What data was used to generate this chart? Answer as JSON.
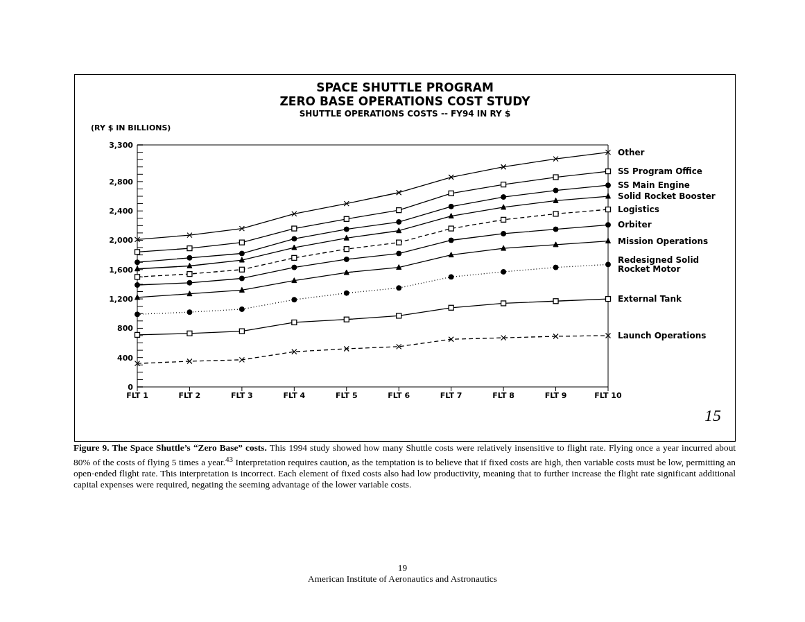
{
  "chart_data": {
    "type": "line",
    "title": "SPACE SHUTTLE PROGRAM\nZERO BASE OPERATIONS COST STUDY",
    "subtitle": "SHUTTLE OPERATIONS COSTS -- FY94 IN RY $",
    "ylabel": "(RY $ IN BILLIONS)",
    "categories": [
      "FLT 1",
      "FLT 2",
      "FLT 3",
      "FLT 4",
      "FLT 5",
      "FLT 6",
      "FLT 7",
      "FLT 8",
      "FLT 9",
      "FLT 10"
    ],
    "series": [
      {
        "name": "Other",
        "color": "#000000",
        "marker": "cross",
        "line_style": "solid",
        "values": [
          2010,
          2070,
          2160,
          2360,
          2500,
          2650,
          2860,
          3000,
          3110,
          3200
        ]
      },
      {
        "name": "SS Program Office",
        "color": "#000000",
        "marker": "square",
        "line_style": "solid",
        "values": [
          1840,
          1890,
          1970,
          2160,
          2290,
          2410,
          2640,
          2760,
          2860,
          2940
        ]
      },
      {
        "name": "SS Main Engine",
        "color": "#000000",
        "marker": "circle",
        "line_style": "solid",
        "values": [
          1700,
          1760,
          1820,
          2020,
          2150,
          2250,
          2460,
          2590,
          2680,
          2750
        ]
      },
      {
        "name": "Solid Rocket Booster",
        "color": "#000000",
        "marker": "triangle",
        "line_style": "solid",
        "values": [
          1610,
          1650,
          1730,
          1900,
          2030,
          2130,
          2330,
          2450,
          2540,
          2600
        ]
      },
      {
        "name": "Logistics",
        "color": "#000000",
        "marker": "square",
        "line_style": "dashed",
        "values": [
          1500,
          1540,
          1600,
          1760,
          1880,
          1970,
          2160,
          2280,
          2360,
          2420
        ]
      },
      {
        "name": "Orbiter",
        "color": "#000000",
        "marker": "circle",
        "line_style": "solid",
        "values": [
          1390,
          1420,
          1480,
          1630,
          1740,
          1820,
          2000,
          2090,
          2150,
          2210
        ]
      },
      {
        "name": "Mission Operations",
        "color": "#000000",
        "marker": "triangle",
        "line_style": "solid",
        "values": [
          1220,
          1270,
          1320,
          1450,
          1560,
          1630,
          1800,
          1890,
          1940,
          1990
        ]
      },
      {
        "name": "Redesigned Solid\nRocket Motor",
        "color": "#000000",
        "marker": "circle",
        "line_style": "dotted",
        "values": [
          990,
          1020,
          1060,
          1190,
          1280,
          1350,
          1500,
          1570,
          1630,
          1670
        ]
      },
      {
        "name": "External Tank",
        "color": "#000000",
        "marker": "square",
        "line_style": "solid",
        "values": [
          710,
          730,
          760,
          880,
          920,
          970,
          1080,
          1140,
          1170,
          1200
        ]
      },
      {
        "name": "Launch Operations",
        "color": "#000000",
        "marker": "cross",
        "line_style": "dashed",
        "values": [
          320,
          350,
          370,
          480,
          520,
          550,
          650,
          670,
          690,
          700
        ]
      }
    ],
    "ylim": [
      0,
      3300
    ],
    "yticks": [
      {
        "value": 0,
        "label": "0"
      },
      {
        "value": 100,
        "label": null
      },
      {
        "value": 200,
        "label": null
      },
      {
        "value": 300,
        "label": null
      },
      {
        "value": 400,
        "label": "400"
      },
      {
        "value": 500,
        "label": null
      },
      {
        "value": 600,
        "label": null
      },
      {
        "value": 700,
        "label": null
      },
      {
        "value": 800,
        "label": "800"
      },
      {
        "value": 900,
        "label": null
      },
      {
        "value": 1000,
        "label": null
      },
      {
        "value": 1100,
        "label": null
      },
      {
        "value": 1200,
        "label": "1,200"
      },
      {
        "value": 1300,
        "label": null
      },
      {
        "value": 1400,
        "label": null
      },
      {
        "value": 1500,
        "label": null
      },
      {
        "value": 1600,
        "label": "1,600"
      },
      {
        "value": 1700,
        "label": null
      },
      {
        "value": 1800,
        "label": null
      },
      {
        "value": 1900,
        "label": null
      },
      {
        "value": 2000,
        "label": "2,000"
      },
      {
        "value": 2100,
        "label": null
      },
      {
        "value": 2200,
        "label": null
      },
      {
        "value": 2300,
        "label": null
      },
      {
        "value": 2400,
        "label": "2,400"
      },
      {
        "value": 2500,
        "label": null
      },
      {
        "value": 2600,
        "label": null
      },
      {
        "value": 2700,
        "label": null
      },
      {
        "value": 2800,
        "label": "2,800"
      },
      {
        "value": 2900,
        "label": null
      },
      {
        "value": 3000,
        "label": null
      },
      {
        "value": 3100,
        "label": null
      },
      {
        "value": 3200,
        "label": null
      },
      {
        "value": 3300,
        "label": "3,300"
      }
    ],
    "annotations": [
      "Figure 9. The Space Shuttle’s “Zero Base” costs.",
      "This 1994 study showed how many Shuttle costs were relatively insensitive to flight rate. Flying once a year incurred about 80% of the costs of flying 5 times a year.$^{43}$ Interpretation requires caution, as the temptation is to believe that if fixed costs are high, then variable costs must be low, permitting an open-ended flight rate. This interpretation is incorrect. Each element of fixed costs also had low productivity, meaning that to further increase the flight rate significant additional capital expenses were required, negating the seeming advantage of the lower variable costs.",
      "19",
      "American Institute of Aeronautics and Astronautics",
      "15"
    ]
  }
}
